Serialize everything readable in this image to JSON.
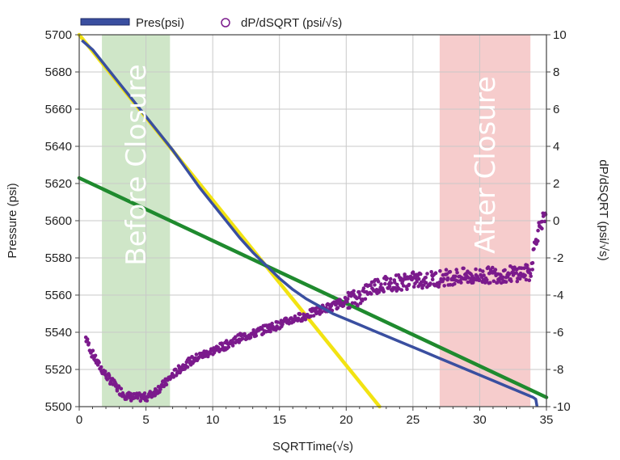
{
  "chart_data": {
    "type": "scatter",
    "title": "",
    "xlabel": "SQRTTime(√s)",
    "ylabel": "Pressure (psi)",
    "y2label": "dP/dSQRT (psi/√s)",
    "xlim": [
      0,
      35
    ],
    "ylim": [
      5500,
      5700
    ],
    "y2lim": [
      -10,
      10
    ],
    "x_ticks": [
      "0",
      "5",
      "10",
      "15",
      "20",
      "25",
      "30",
      "35"
    ],
    "y_ticks": [
      "5500",
      "5520",
      "5540",
      "5560",
      "5580",
      "5600",
      "5620",
      "5640",
      "5660",
      "5680",
      "5700"
    ],
    "y2_ticks": [
      "-10",
      "-8",
      "-6",
      "-4",
      "-2",
      "0",
      "2",
      "4",
      "6",
      "8",
      "10"
    ],
    "grid": true,
    "legend": {
      "position": "top",
      "entries": [
        "Pres(psi)",
        "dP/dSQRT (psi/√s)"
      ]
    },
    "bands": [
      {
        "label": "Before Closure",
        "x": [
          1.7,
          6.8
        ],
        "color": "#cfe6c8"
      },
      {
        "label": "After Closure",
        "x": [
          27.0,
          33.8
        ],
        "color": "#f6cccc"
      }
    ],
    "pressure_series": {
      "name": "Pres(psi)",
      "axis": "left",
      "color": "#3a4fa0",
      "x": [
        0.2,
        1,
        2,
        3,
        4,
        5,
        6,
        7,
        8,
        9,
        10,
        11,
        12,
        13,
        14,
        15,
        16,
        17,
        18,
        19,
        20,
        21,
        22,
        23,
        24,
        25,
        26,
        27,
        28,
        29,
        30,
        31,
        32,
        33,
        34,
        34.2,
        34.3
      ],
      "y": [
        5697,
        5692,
        5683,
        5674,
        5665,
        5656,
        5647,
        5638,
        5628,
        5618,
        5609,
        5600,
        5591,
        5583,
        5576,
        5569,
        5563,
        5558,
        5554,
        5550,
        5547,
        5544,
        5541,
        5538,
        5535,
        5532,
        5529,
        5526,
        5523,
        5520,
        5517,
        5514,
        5511,
        5508,
        5505,
        5504,
        5500
      ]
    },
    "derivative_series": {
      "name": "dP/dSQRT (psi/√s)",
      "axis": "right",
      "color": "#7b1a8c",
      "x": [
        0.5,
        1,
        1.5,
        2,
        2.5,
        3,
        3.5,
        4,
        4.5,
        5,
        5.5,
        6,
        6.5,
        7,
        7.5,
        8,
        9,
        10,
        11,
        12,
        13,
        14,
        15,
        16,
        17,
        18,
        19,
        20,
        21,
        22,
        23,
        24,
        25,
        26,
        27,
        28,
        29,
        30,
        31,
        32,
        33,
        33.8,
        34.2,
        34.6,
        35
      ],
      "y": [
        -6.3,
        -7.2,
        -7.8,
        -8.3,
        -8.7,
        -9.1,
        -9.4,
        -9.5,
        -9.5,
        -9.5,
        -9.3,
        -9.0,
        -8.7,
        -8.3,
        -8.0,
        -7.7,
        -7.3,
        -7.0,
        -6.7,
        -6.3,
        -6.1,
        -5.8,
        -5.6,
        -5.3,
        -5.1,
        -4.8,
        -4.6,
        -4.3,
        -4.1,
        -3.5,
        -3.4,
        -3.3,
        -3.2,
        -3.2,
        -3.1,
        -3.0,
        -3.0,
        -3.0,
        -2.9,
        -2.9,
        -2.8,
        -2.8,
        -1.0,
        0.0,
        0.0
      ]
    },
    "fit_lines": [
      {
        "color": "#f2e312",
        "x": [
          0,
          22.5
        ],
        "y": [
          5700,
          5500
        ]
      },
      {
        "color": "#1f8a2e",
        "x": [
          0,
          35
        ],
        "y": [
          5623,
          5505
        ]
      }
    ]
  }
}
